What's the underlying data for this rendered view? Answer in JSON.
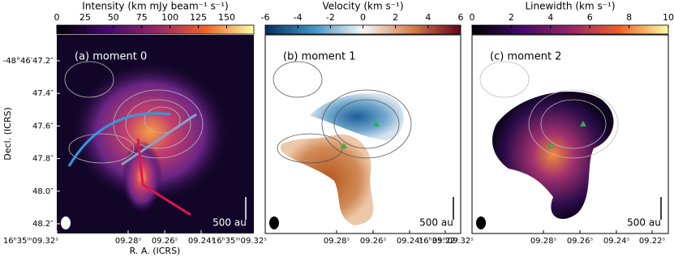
{
  "y_axis": {
    "label": "Decl. (ICRS)",
    "ticks": [
      "-48°46′47.2″",
      "47.4″",
      "47.6″",
      "47.8″",
      "48.0″",
      "48.2″"
    ]
  },
  "x_axis": {
    "label": "R. A. (ICRS)"
  },
  "panels": [
    {
      "label": "(a) moment 0",
      "scale_bar": "500 au",
      "colorbar": {
        "label": "Intensity (km mJy beam⁻¹ s⁻¹)",
        "range": [
          0,
          174
        ],
        "ticks": [
          0,
          25,
          50,
          75,
          100,
          125,
          150
        ]
      },
      "x_ticks": [
        "16ʰ35ᵐ09.32ˢ",
        "09.28ˢ",
        "09.26ˢ",
        "09.24ˢ"
      ]
    },
    {
      "label": "(b) moment 1",
      "scale_bar": "500 au",
      "colorbar": {
        "label": "Velocity (km s⁻¹)",
        "range": [
          -6,
          6
        ],
        "ticks": [
          -6,
          -4,
          -2,
          0,
          2,
          4,
          6
        ]
      },
      "x_ticks": [
        "16ʰ35ᵐ09.32ˢ",
        "09.28ˢ",
        "09.26ˢ",
        "09.24ˢ",
        "09.22ˢ"
      ]
    },
    {
      "label": "(c) moment 2",
      "scale_bar": "500 au",
      "colorbar": {
        "label": "Linewidth (km s⁻¹)",
        "range": [
          0,
          10
        ],
        "ticks": [
          0,
          2,
          4,
          6,
          8,
          10
        ]
      },
      "x_ticks": [
        "16ʰ35ᵐ09.32ˢ",
        "09.28ˢ",
        "09.26ˢ",
        "09.24ˢ",
        "09.22ˢ"
      ]
    }
  ]
}
